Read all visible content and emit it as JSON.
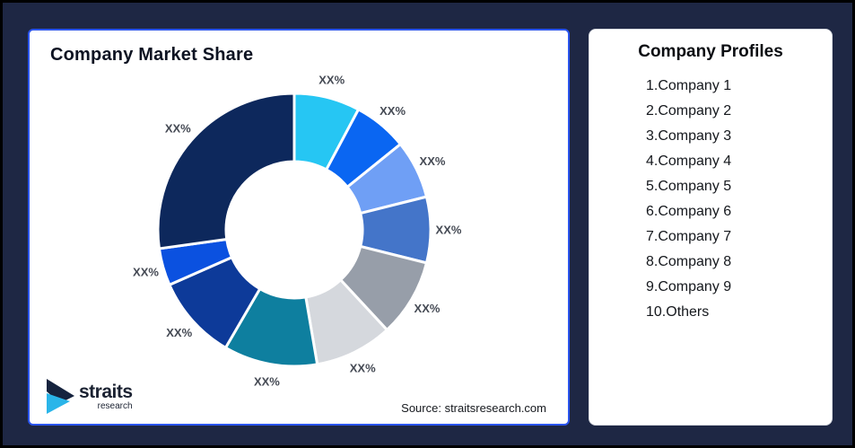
{
  "canvas": {
    "background_color": "#1e2744",
    "frame_border_color": "#000000"
  },
  "left_panel": {
    "title": "Company Market Share",
    "border_color": "#2b55ee",
    "source_text": "Source: straitsresearch.com",
    "logo": {
      "name": "straits",
      "subname": "research",
      "mark_navy": "#16233e",
      "mark_cyan": "#2ab5e9"
    }
  },
  "right_panel": {
    "title": "Company Profiles",
    "items": [
      "1.Company 1",
      "2.Company 2",
      "3.Company 3",
      "4.Company 4",
      "5.Company 5",
      "6.Company 6",
      "7.Company 7",
      "8.Company 8",
      "9.Company 9",
      "10.Others"
    ]
  },
  "chart_data": {
    "type": "pie",
    "subtype": "donut",
    "title": "Company Market Share",
    "labels": [
      "XX%",
      "XX%",
      "XX%",
      "XX%",
      "XX%",
      "XX%",
      "XX%",
      "XX%",
      "XX%",
      "XX%"
    ],
    "values": [
      7.8,
      6.4,
      6.9,
      7.8,
      9.2,
      9.2,
      11.1,
      10.0,
      4.4,
      27.2
    ],
    "colors": [
      "#26c6f3",
      "#0a66f2",
      "#6f9ff5",
      "#4475c9",
      "#979ea9",
      "#d5d8dd",
      "#0e7f9f",
      "#0d3a99",
      "#0b51e0",
      "#0d285c"
    ],
    "start_angle_deg": 0,
    "clockwise": true,
    "inner_radius_ratio": 0.5,
    "segment_gap_color": "#ffffff",
    "label_color": "#454a54",
    "source": "Source: straitsresearch.com"
  }
}
